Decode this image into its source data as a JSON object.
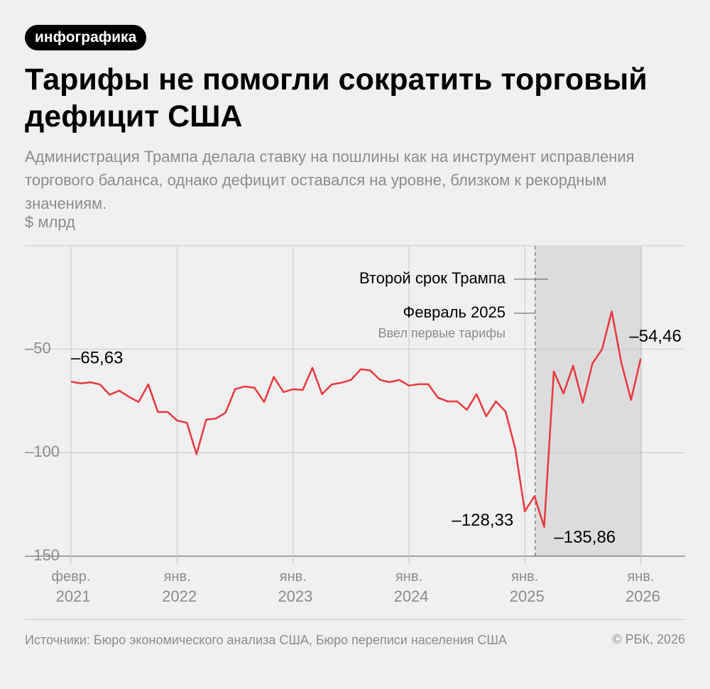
{
  "chart_data": {
    "type": "line",
    "badge": "инфографика",
    "title": "Тарифы не помогли сократить торговый дефицит США",
    "subtitle": "Администрация Трампа делала ставку на пошлины как на инструмент исправления торгового баланса, однако дефицит оставался на уровне, близком к рекордным значениям.",
    "y_label": "$ млрд",
    "annotations": {
      "term": "Второй срок Трампа",
      "date": "Февраль 2025",
      "note": "Ввел первые тарифы"
    },
    "source": "Источники: Бюро экономического анализа США, Бюро переписи населения США",
    "copyright": "© РБК, 2026",
    "categories": [
      "февр. 2021",
      null,
      null,
      null,
      null,
      null,
      null,
      null,
      null,
      null,
      null,
      "янв. 2022",
      null,
      null,
      null,
      null,
      null,
      null,
      null,
      null,
      null,
      null,
      null,
      "янв. 2023",
      null,
      null,
      null,
      null,
      null,
      null,
      null,
      null,
      null,
      null,
      null,
      "янв. 2024",
      null,
      null,
      null,
      null,
      null,
      null,
      null,
      null,
      null,
      null,
      null,
      "янв. 2025",
      null,
      null,
      null,
      null,
      null,
      null,
      null,
      null,
      null,
      null,
      null,
      "янв. 2026"
    ],
    "values": [
      -65.63,
      -66.5,
      -66,
      -67,
      -72,
      -70,
      -73,
      -75.5,
      -67,
      -80.3,
      -80.3,
      -84.5,
      -85.5,
      -100.7,
      -84,
      -83.5,
      -80.7,
      -69.3,
      -68,
      -68.6,
      -75.5,
      -63.4,
      -70.7,
      -69.3,
      -69.7,
      -59,
      -71.7,
      -67,
      -66.2,
      -64.8,
      -59.7,
      -60.3,
      -64.8,
      -65.9,
      -64.8,
      -67.6,
      -66.9,
      -66.9,
      -73.4,
      -75.2,
      -75.2,
      -79.3,
      -71.7,
      -82.4,
      -75.2,
      -80,
      -97.9,
      -128.33,
      -121,
      -135.86,
      -60.7,
      -71.4,
      -58,
      -75.9,
      -56.9,
      -50,
      -31.7,
      -56.6,
      -74.5,
      -54.46
    ],
    "value_labels": [
      "–65,63",
      null,
      null,
      null,
      null,
      null,
      null,
      null,
      null,
      null,
      null,
      null,
      null,
      null,
      null,
      null,
      null,
      null,
      null,
      null,
      null,
      null,
      null,
      null,
      null,
      null,
      null,
      null,
      null,
      null,
      null,
      null,
      null,
      null,
      null,
      null,
      null,
      null,
      null,
      null,
      null,
      null,
      null,
      null,
      null,
      null,
      null,
      "–128,33",
      null,
      "–135,86",
      null,
      null,
      null,
      null,
      null,
      null,
      null,
      null,
      null,
      "–54,46"
    ],
    "color": "#e8383d",
    "ylim": [
      -150,
      0
    ],
    "yticks": [
      {
        "value": -150,
        "label": "–150"
      },
      {
        "value": -100,
        "label": "–100"
      },
      {
        "value": -50,
        "label": "–50"
      }
    ],
    "grid": true
  }
}
